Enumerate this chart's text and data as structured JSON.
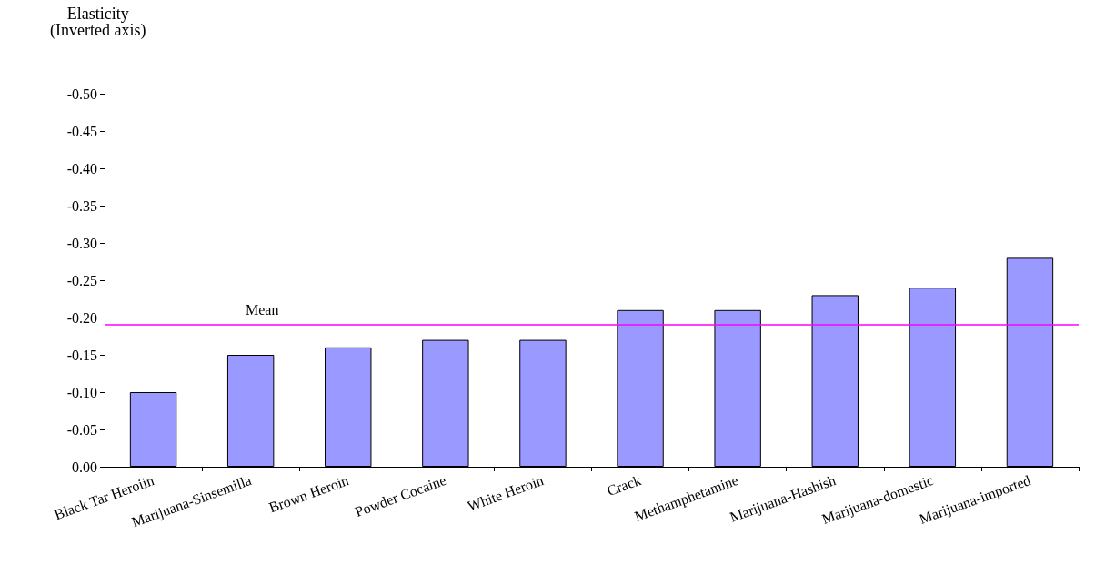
{
  "chart_data": {
    "type": "bar",
    "ylabel": "Elasticity\n(Inverted axis)",
    "categories": [
      "Black Tar Heroiin",
      "Marijuana-Sinsemilla",
      "Brown Heroin",
      "Powder Cocaine",
      "White Heroin",
      "Crack",
      "Methamphetamine",
      "Marijuana-Hashish",
      "Marijuana-domestic",
      "Marijuana-imported"
    ],
    "values": [
      -0.1,
      -0.15,
      -0.16,
      -0.17,
      -0.17,
      -0.21,
      -0.21,
      -0.23,
      -0.24,
      -0.28
    ],
    "color": "#9999ff",
    "ylim": [
      0,
      -0.5
    ],
    "yticks": [
      {
        "value": 0,
        "label": "0.00"
      },
      {
        "value": -0.05,
        "label": "-0.05"
      },
      {
        "value": -0.1,
        "label": "-0.10"
      },
      {
        "value": -0.15,
        "label": "-0.15"
      },
      {
        "value": -0.2,
        "label": "-0.20"
      },
      {
        "value": -0.25,
        "label": "-0.25"
      },
      {
        "value": -0.3,
        "label": "-0.30"
      },
      {
        "value": -0.35,
        "label": "-0.35"
      },
      {
        "value": -0.4,
        "label": "-0.40"
      },
      {
        "value": -0.45,
        "label": "-0.45"
      },
      {
        "value": -0.5,
        "label": "-0.50"
      }
    ],
    "ref_lines": [
      {
        "axis": "y",
        "value": -0.19,
        "label": "Mean",
        "color": "#ff00ff"
      }
    ],
    "grid": false
  }
}
